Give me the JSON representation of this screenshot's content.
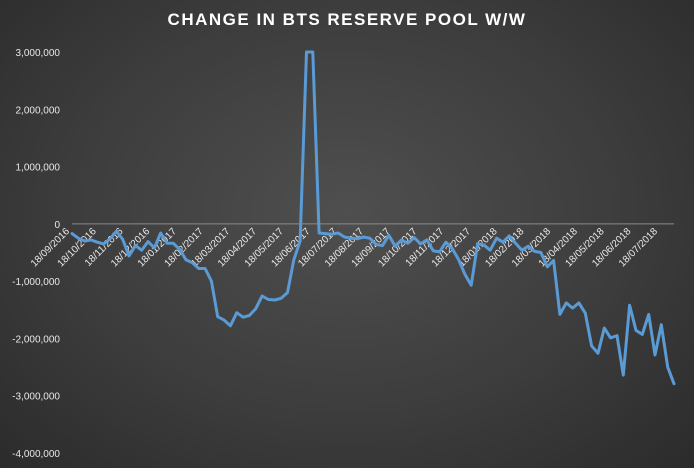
{
  "chart_data": {
    "type": "line",
    "title": "CHANGE IN BTS RESERVE POOL W/W",
    "xlabel": "",
    "ylabel": "",
    "ylim": [
      -4000000,
      3000000
    ],
    "y_ticks": [
      3000000,
      2000000,
      1000000,
      0,
      -1000000,
      -2000000,
      -3000000,
      -4000000
    ],
    "y_tick_labels": [
      "3,000,000",
      "2,000,000",
      "1,000,000",
      "0",
      "-1,000,000",
      "-2,000,000",
      "-3,000,000",
      "-4,000,000"
    ],
    "x_tick_labels": [
      "18/09/2016",
      "18/10/2016",
      "18/11/2016",
      "18/12/2016",
      "18/01/2017",
      "18/02/2017",
      "18/03/2017",
      "18/04/2017",
      "18/05/2017",
      "18/06/2017",
      "18/07/2017",
      "18/08/2017",
      "18/09/2017",
      "18/10/2017",
      "18/11/2017",
      "18/12/2017",
      "18/01/2018",
      "18/02/2018",
      "18/03/2018",
      "18/04/2018",
      "18/05/2018",
      "18/06/2018",
      "18/07/2018"
    ],
    "grid": false,
    "line_color": "#5b9bd5",
    "series": [
      {
        "values": [
          -170000,
          -250000,
          -300000,
          -280000,
          -320000,
          -350000,
          -260000,
          -130000,
          -270000,
          -560000,
          -380000,
          -460000,
          -310000,
          -420000,
          -160000,
          -340000,
          -340000,
          -450000,
          -630000,
          -680000,
          -780000,
          -780000,
          -1000000,
          -1620000,
          -1680000,
          -1780000,
          -1550000,
          -1630000,
          -1600000,
          -1480000,
          -1260000,
          -1320000,
          -1330000,
          -1300000,
          -1200000,
          -630000,
          -300000,
          3000000,
          3000000,
          -160000,
          -170000,
          -180000,
          -160000,
          -230000,
          -250000,
          -260000,
          -230000,
          -250000,
          -360000,
          -380000,
          -200000,
          -390000,
          -280000,
          -340000,
          -240000,
          -350000,
          -280000,
          -470000,
          -490000,
          -320000,
          -430000,
          -620000,
          -880000,
          -1070000,
          -350000,
          -370000,
          -460000,
          -250000,
          -320000,
          -210000,
          -340000,
          -460000,
          -390000,
          -480000,
          -500000,
          -750000,
          -640000,
          -1580000,
          -1380000,
          -1470000,
          -1380000,
          -1560000,
          -2130000,
          -2260000,
          -1820000,
          -1990000,
          -1950000,
          -2640000,
          -1420000,
          -1860000,
          -1930000,
          -1580000,
          -2290000,
          -1760000,
          -2500000,
          -2790000
        ]
      }
    ]
  }
}
